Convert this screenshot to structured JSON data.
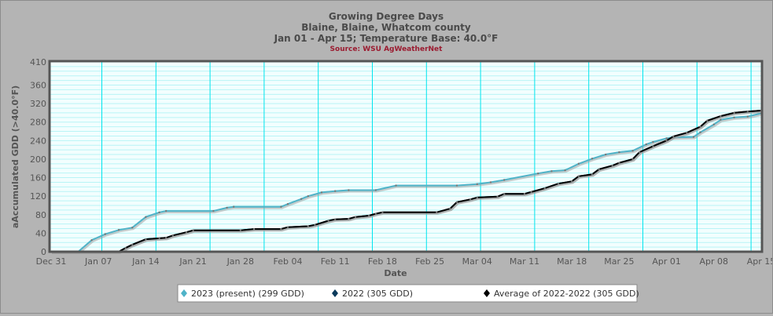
{
  "chart_data": {
    "type": "line",
    "title": "Growing Degree Days",
    "subtitle": "Blaine, Blaine, Whatcom county",
    "subtitle2": "Jan 01 - Apr 15; Temperature Base: 40.0°F",
    "source": "Source:  WSU AgWeatherNet",
    "xlabel": "Date",
    "ylabel": "aAccumulated GDD (>40.0°F)",
    "xlim": [
      "2022-12-31",
      "2023-04-15"
    ],
    "ylim": [
      0,
      410
    ],
    "yticks": [
      0,
      40,
      80,
      120,
      160,
      200,
      240,
      280,
      320,
      360,
      410
    ],
    "xticks": [
      {
        "date": "2022-12-31",
        "label": "Dec 31"
      },
      {
        "date": "2023-01-07",
        "label": "Jan 07"
      },
      {
        "date": "2023-01-14",
        "label": "Jan 14"
      },
      {
        "date": "2023-01-21",
        "label": "Jan 21"
      },
      {
        "date": "2023-01-28",
        "label": "Jan 28"
      },
      {
        "date": "2023-02-04",
        "label": "Feb 04"
      },
      {
        "date": "2023-02-11",
        "label": "Feb 11"
      },
      {
        "date": "2023-02-18",
        "label": "Feb 18"
      },
      {
        "date": "2023-02-25",
        "label": "Feb 25"
      },
      {
        "date": "2023-03-04",
        "label": "Mar 04"
      },
      {
        "date": "2023-03-11",
        "label": "Mar 11"
      },
      {
        "date": "2023-03-18",
        "label": "Mar 18"
      },
      {
        "date": "2023-03-25",
        "label": "Mar 25"
      },
      {
        "date": "2023-04-01",
        "label": "Apr 01"
      },
      {
        "date": "2023-04-08",
        "label": "Apr 08"
      },
      {
        "date": "2023-04-15",
        "label": "Apr 15"
      }
    ],
    "grid": true,
    "legend_position": "bottom",
    "colors": {
      "background": "#b4b4b4",
      "plot": "#f2fefe",
      "grid": "#00e5ee",
      "minor_grid": "#b8f4f6"
    },
    "series": [
      {
        "name": "2023 (present) (299 GDD)",
        "color": "#4fb3c8",
        "points": [
          [
            "2022-12-31",
            0
          ],
          [
            "2023-01-04",
            0
          ],
          [
            "2023-01-06",
            25
          ],
          [
            "2023-01-08",
            38
          ],
          [
            "2023-01-10",
            47
          ],
          [
            "2023-01-12",
            52
          ],
          [
            "2023-01-14",
            75
          ],
          [
            "2023-01-16",
            85
          ],
          [
            "2023-01-17",
            88
          ],
          [
            "2023-01-24",
            88
          ],
          [
            "2023-01-26",
            95
          ],
          [
            "2023-01-27",
            97
          ],
          [
            "2023-02-03",
            97
          ],
          [
            "2023-02-04",
            103
          ],
          [
            "2023-02-06",
            114
          ],
          [
            "2023-02-07",
            120
          ],
          [
            "2023-02-09",
            128
          ],
          [
            "2023-02-11",
            131
          ],
          [
            "2023-02-13",
            133
          ],
          [
            "2023-02-17",
            133
          ],
          [
            "2023-02-20",
            143
          ],
          [
            "2023-03-01",
            143
          ],
          [
            "2023-03-04",
            146
          ],
          [
            "2023-03-06",
            150
          ],
          [
            "2023-03-08",
            155
          ],
          [
            "2023-03-13",
            169
          ],
          [
            "2023-03-15",
            174
          ],
          [
            "2023-03-17",
            176
          ],
          [
            "2023-03-19",
            190
          ],
          [
            "2023-03-21",
            201
          ],
          [
            "2023-03-23",
            210
          ],
          [
            "2023-03-25",
            215
          ],
          [
            "2023-03-27",
            218
          ],
          [
            "2023-03-29",
            232
          ],
          [
            "2023-03-30",
            237
          ],
          [
            "2023-04-01",
            245
          ],
          [
            "2023-04-02",
            247
          ],
          [
            "2023-04-05",
            248
          ],
          [
            "2023-04-06",
            258
          ],
          [
            "2023-04-08",
            275
          ],
          [
            "2023-04-09",
            285
          ],
          [
            "2023-04-11",
            290
          ],
          [
            "2023-04-13",
            292
          ],
          [
            "2023-04-15",
            299
          ]
        ]
      },
      {
        "name": "2022 (305 GDD)",
        "color": "#0b3a5c",
        "points": [
          [
            "2022-12-31",
            0
          ],
          [
            "2023-01-10",
            0
          ],
          [
            "2023-01-11",
            8
          ],
          [
            "2023-01-12",
            15
          ],
          [
            "2023-01-14",
            27
          ],
          [
            "2023-01-16",
            29
          ],
          [
            "2023-01-17",
            30
          ],
          [
            "2023-01-18",
            35
          ],
          [
            "2023-01-20",
            42
          ],
          [
            "2023-01-21",
            46
          ],
          [
            "2023-01-28",
            46
          ],
          [
            "2023-01-30",
            49
          ],
          [
            "2023-02-03",
            49
          ],
          [
            "2023-02-04",
            53
          ],
          [
            "2023-02-07",
            55
          ],
          [
            "2023-02-08",
            58
          ],
          [
            "2023-02-10",
            67
          ],
          [
            "2023-02-11",
            70
          ],
          [
            "2023-02-13",
            71
          ],
          [
            "2023-02-14",
            75
          ],
          [
            "2023-02-16",
            78
          ],
          [
            "2023-02-17",
            82
          ],
          [
            "2023-02-18",
            85
          ],
          [
            "2023-02-26",
            85
          ],
          [
            "2023-02-28",
            93
          ],
          [
            "2023-03-01",
            107
          ],
          [
            "2023-03-03",
            113
          ],
          [
            "2023-03-04",
            117
          ],
          [
            "2023-03-07",
            119
          ],
          [
            "2023-03-08",
            125
          ],
          [
            "2023-03-11",
            125
          ],
          [
            "2023-03-12",
            129
          ],
          [
            "2023-03-14",
            137
          ],
          [
            "2023-03-16",
            147
          ],
          [
            "2023-03-18",
            152
          ],
          [
            "2023-03-19",
            163
          ],
          [
            "2023-03-21",
            167
          ],
          [
            "2023-03-22",
            178
          ],
          [
            "2023-03-24",
            186
          ],
          [
            "2023-03-25",
            192
          ],
          [
            "2023-03-27",
            200
          ],
          [
            "2023-03-28",
            215
          ],
          [
            "2023-03-30",
            228
          ],
          [
            "2023-04-01",
            240
          ],
          [
            "2023-04-02",
            249
          ],
          [
            "2023-04-04",
            257
          ],
          [
            "2023-04-06",
            270
          ],
          [
            "2023-04-07",
            283
          ],
          [
            "2023-04-09",
            293
          ],
          [
            "2023-04-11",
            300
          ],
          [
            "2023-04-13",
            303
          ],
          [
            "2023-04-15",
            305
          ]
        ]
      },
      {
        "name": "Average of 2022-2022 (305 GDD)",
        "color": "#000000",
        "points": [
          [
            "2022-12-31",
            0
          ],
          [
            "2023-01-10",
            0
          ],
          [
            "2023-01-11",
            8
          ],
          [
            "2023-01-12",
            15
          ],
          [
            "2023-01-14",
            27
          ],
          [
            "2023-01-16",
            29
          ],
          [
            "2023-01-17",
            30
          ],
          [
            "2023-01-18",
            35
          ],
          [
            "2023-01-20",
            42
          ],
          [
            "2023-01-21",
            46
          ],
          [
            "2023-01-28",
            46
          ],
          [
            "2023-01-30",
            49
          ],
          [
            "2023-02-03",
            49
          ],
          [
            "2023-02-04",
            53
          ],
          [
            "2023-02-07",
            55
          ],
          [
            "2023-02-08",
            58
          ],
          [
            "2023-02-10",
            67
          ],
          [
            "2023-02-11",
            70
          ],
          [
            "2023-02-13",
            71
          ],
          [
            "2023-02-14",
            75
          ],
          [
            "2023-02-16",
            78
          ],
          [
            "2023-02-17",
            82
          ],
          [
            "2023-02-18",
            85
          ],
          [
            "2023-02-26",
            85
          ],
          [
            "2023-02-28",
            93
          ],
          [
            "2023-03-01",
            107
          ],
          [
            "2023-03-03",
            113
          ],
          [
            "2023-03-04",
            117
          ],
          [
            "2023-03-07",
            119
          ],
          [
            "2023-03-08",
            125
          ],
          [
            "2023-03-11",
            125
          ],
          [
            "2023-03-12",
            129
          ],
          [
            "2023-03-14",
            137
          ],
          [
            "2023-03-16",
            147
          ],
          [
            "2023-03-18",
            152
          ],
          [
            "2023-03-19",
            163
          ],
          [
            "2023-03-21",
            167
          ],
          [
            "2023-03-22",
            178
          ],
          [
            "2023-03-24",
            186
          ],
          [
            "2023-03-25",
            192
          ],
          [
            "2023-03-27",
            200
          ],
          [
            "2023-03-28",
            215
          ],
          [
            "2023-03-30",
            228
          ],
          [
            "2023-04-01",
            240
          ],
          [
            "2023-04-02",
            249
          ],
          [
            "2023-04-04",
            257
          ],
          [
            "2023-04-06",
            270
          ],
          [
            "2023-04-07",
            283
          ],
          [
            "2023-04-09",
            293
          ],
          [
            "2023-04-11",
            300
          ],
          [
            "2023-04-13",
            303
          ],
          [
            "2023-04-15",
            305
          ]
        ]
      }
    ]
  }
}
